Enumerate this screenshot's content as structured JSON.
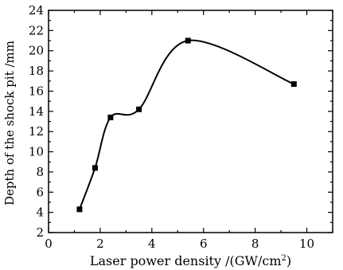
{
  "chart_data": {
    "type": "scatter",
    "title": "",
    "xlabel": {
      "prefix": "Laser power density /(GW/cm",
      "superscript": "2",
      "suffix": ")"
    },
    "ylabel": "Depth of the shock pit /mm",
    "xlim": [
      0,
      11
    ],
    "ylim": [
      2,
      24
    ],
    "x_ticks": [
      0,
      2,
      4,
      6,
      8,
      10
    ],
    "y_ticks": [
      2,
      4,
      6,
      8,
      10,
      12,
      14,
      16,
      18,
      20,
      22,
      24
    ],
    "grid": false,
    "legend": "none",
    "marker": "square",
    "curve": "smooth-spline",
    "series": [
      {
        "x": [
          1.2,
          1.8,
          2.4,
          3.5,
          5.4,
          9.5
        ],
        "y": [
          4.3,
          8.4,
          13.4,
          14.2,
          21.0,
          16.7
        ]
      }
    ],
    "colors": {
      "line": "#000000",
      "marker": "#000000",
      "axis": "#000000"
    }
  }
}
